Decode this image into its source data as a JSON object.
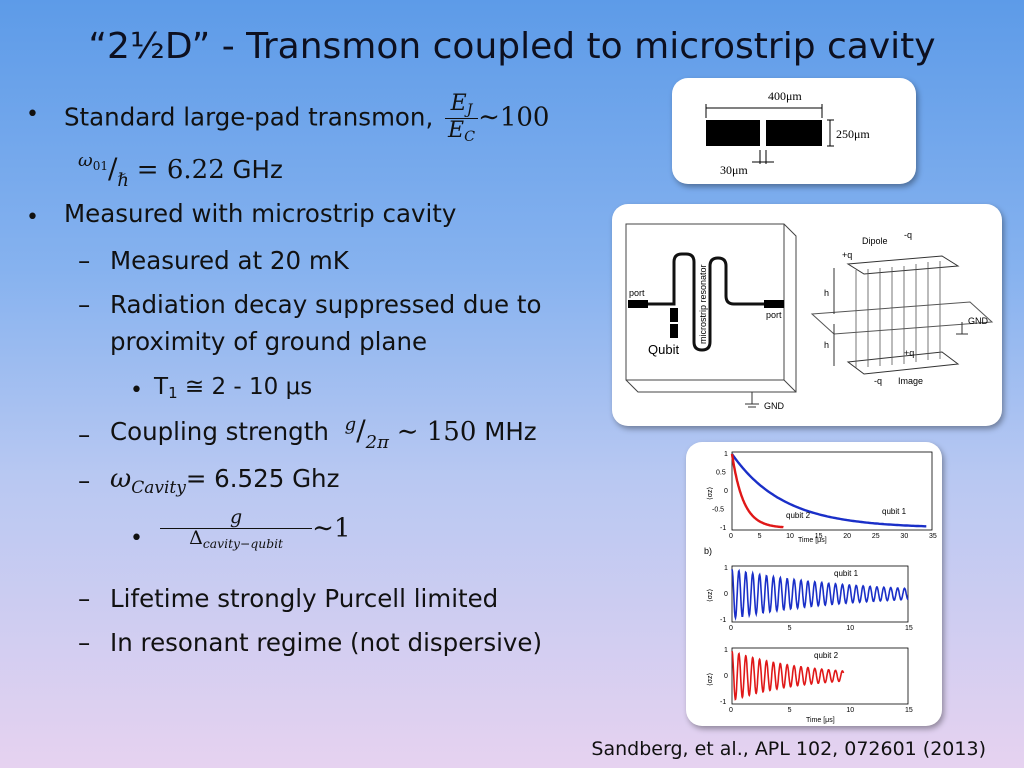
{
  "title": "“2½D” - Transmon coupled to microstrip cavity",
  "bullets": {
    "b1_text": "Standard large-pad transmon,",
    "b1_ej": "E",
    "b1_ej_sub": "J",
    "b1_ec": "E",
    "b1_ec_sub": "C",
    "b1_tail": "∼100",
    "b1_omega": "ω",
    "b1_omega_sub": "01",
    "b1_hbar": "ℏ",
    "b1_eq": "= 6.22",
    "b1_unit": "GHz",
    "b2_text": "Measured with microstrip cavity",
    "b2_1": "Measured at 20 mK",
    "b2_2a": "Radiation decay suppressed due to",
    "b2_2b": "proximity of ground plane",
    "b2_3_T": "T",
    "b2_3_sub": "1",
    "b2_3_rest": " ≅ 2 - 10 μs",
    "b2_4_text": "Coupling strength",
    "b2_4_g": "g",
    "b2_4_2pi": "2π",
    "b2_4_val": "∼ 150",
    "b2_4_unit": "MHz",
    "b2_5_omega": "ω",
    "b2_5_sub": "Cavity",
    "b2_5_rest": "= 6.525 Ghz",
    "b2_6_g": "g",
    "b2_6_den": "Δ",
    "b2_6_den_sub": "cavity−qubit",
    "b2_6_tail": "∼1",
    "b2_7": "Lifetime strongly Purcell limited",
    "b2_8": "In resonant regime (not dispersive)",
    "bullet_glyph": "•",
    "dash_glyph": "–"
  },
  "figure1": {
    "dim_width": "400μm",
    "dim_height": "250μm",
    "dim_gap": "30μm"
  },
  "figure2": {
    "port_left": "port",
    "port_right": "port",
    "resonator": "microstrip resonator",
    "qubit": "Qubit",
    "gnd_bottom": "GND",
    "dipole": "Dipole",
    "plus_q_top": "+q",
    "minus_q_top": "-q",
    "h_top": "h",
    "h_bottom": "h",
    "gnd_right": "GND",
    "image": "Image",
    "minus_q_bottom": "-q",
    "plus_q_bottom": "+q"
  },
  "figure3": {
    "panel_b": "b)",
    "qubit1_a": "qubit 1",
    "qubit2_a": "qubit 2",
    "qubit1_b": "qubit 1",
    "qubit2_c": "qubit 2",
    "xlabel": "Time [μs]",
    "ylabel": "⟨σz⟩",
    "xticks_a": [
      "0",
      "5",
      "10",
      "15",
      "20",
      "25",
      "30",
      "35"
    ],
    "yticks_a": [
      "1",
      "0.5",
      "0",
      "-0.5",
      "-1"
    ],
    "xticks_bc": [
      "0",
      "5",
      "10",
      "15"
    ],
    "yticks_bc": [
      "1",
      "0",
      "-1"
    ],
    "color_qubit1": "#1a2fc8",
    "color_qubit2": "#e01818"
  },
  "citation": "Sandberg, et al., APL 102, 072601 (2013)"
}
